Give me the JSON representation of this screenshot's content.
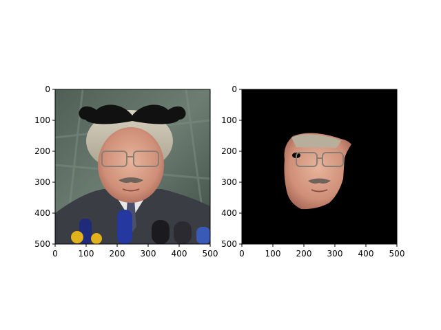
{
  "chart_data": [
    {
      "type": "image",
      "content": "face photo with a drawn-on black mustache",
      "xlim": [
        0,
        500
      ],
      "ylim": [
        500,
        0
      ],
      "x_ticks": [
        "0",
        "100",
        "200",
        "300",
        "400",
        "500"
      ],
      "y_ticks": [
        "0",
        "100",
        "200",
        "300",
        "400",
        "500"
      ]
    },
    {
      "type": "image",
      "content": "segmented face region on black background",
      "xlim": [
        0,
        500
      ],
      "ylim": [
        500,
        0
      ],
      "x_ticks": [
        "0",
        "100",
        "200",
        "300",
        "400",
        "500"
      ],
      "y_ticks": [
        "0",
        "100",
        "200",
        "300",
        "400",
        "500"
      ]
    }
  ],
  "colors": {
    "mustache": "#111111",
    "mask_background": "#000000"
  }
}
